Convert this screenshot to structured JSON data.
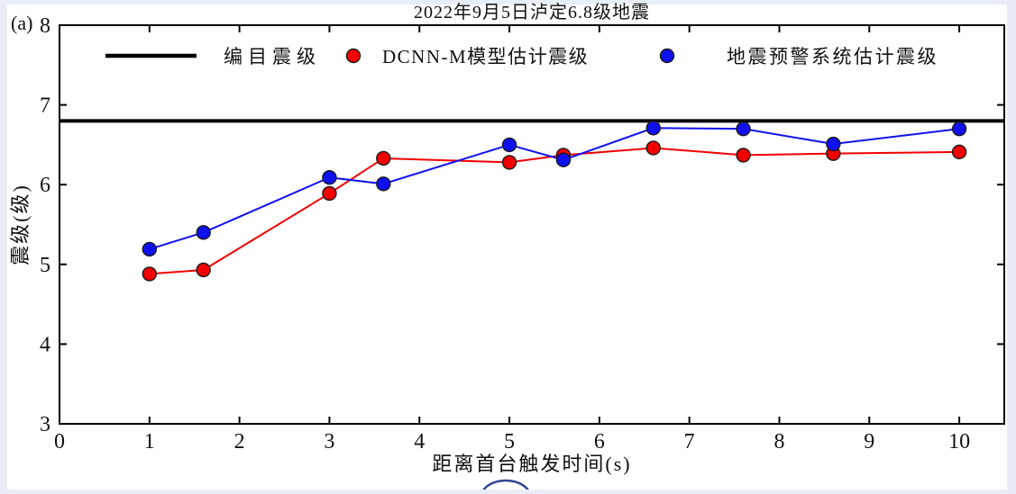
{
  "figure_label": "(a)",
  "title": "2022年9月5日泸定6.8级地震",
  "colors": {
    "catalog_line": "#000000",
    "dcnn_series": "#f20000",
    "eew_series": "#1010ee",
    "marker_edge": "#1a1a1a",
    "axis": "#000000",
    "page_background": "#e9edf7",
    "figure_background": "#ffffff",
    "watermark_ring": "#2f4398"
  },
  "legend": {
    "items": [
      {
        "label": "编目震级",
        "swatch": "line",
        "color": "#000000"
      },
      {
        "label": "DCNN-M模型估计震级",
        "swatch": "circle",
        "color": "#f20000"
      },
      {
        "label": "地震预警系统估计震级",
        "swatch": "circle",
        "color": "#1010ee"
      }
    ]
  },
  "watermark": {
    "name": "partial-circle-stamp"
  },
  "chart_data": {
    "type": "line",
    "title": "2022年9月5日泸定6.8级地震",
    "xlabel": "距离首台触发时间(s)",
    "ylabel": "震级(级)",
    "xlim": [
      0,
      10.5
    ],
    "ylim": [
      3,
      8
    ],
    "xticks": [
      0,
      1,
      2,
      3,
      4,
      5,
      6,
      7,
      8,
      9,
      10
    ],
    "yticks": [
      3,
      4,
      5,
      6,
      7,
      8
    ],
    "grid": false,
    "legend_position": "top-inside",
    "reference_line": {
      "name": "编目震级",
      "value": 6.8,
      "color": "#000000",
      "width": 4
    },
    "x": [
      1.0,
      1.6,
      3.0,
      3.6,
      5.0,
      5.6,
      6.6,
      7.6,
      8.6,
      10.0
    ],
    "series": [
      {
        "name": "DCNN-M模型估计震级",
        "color": "#f20000",
        "marker": "circle",
        "values": [
          4.88,
          4.93,
          5.89,
          6.33,
          6.28,
          6.37,
          6.46,
          6.37,
          6.39,
          6.41
        ]
      },
      {
        "name": "地震预警系统估计震级",
        "color": "#1010ee",
        "marker": "circle",
        "values": [
          5.19,
          5.4,
          6.09,
          6.01,
          6.5,
          6.31,
          6.71,
          6.7,
          6.51,
          6.7
        ]
      }
    ]
  }
}
